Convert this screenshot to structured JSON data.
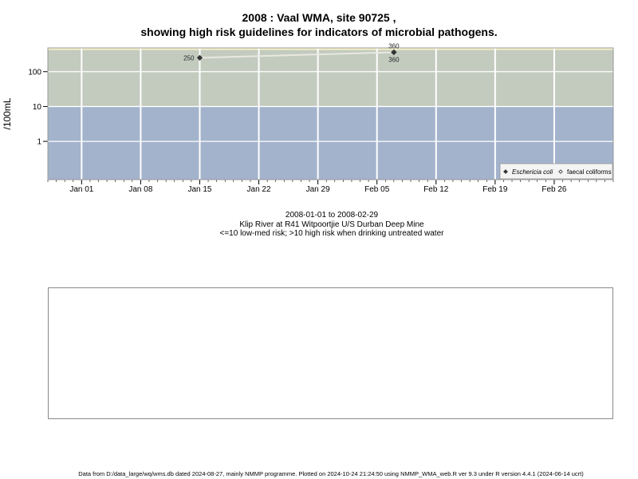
{
  "titles": {
    "line1": "2008 : Vaal WMA, site 90725 ,",
    "line2": "showing high risk guidelines for indicators of microbial pathogens."
  },
  "captions": {
    "date_range": "2008-01-01 to 2008-02-29",
    "site": "Klip River at R41 Witpoortjie U/S Durban Deep Mine",
    "risk": "<=10 low-med risk; >10 high risk when drinking untreated water"
  },
  "footer": "Data from D:/data_large/wq/wms.db dated 2024-08-27, mainly NMMP programme. Plotted on 2024-10-24 21:24:50 using NMMP_WMA_web.R ver 9.3 under R version 4.4.1 (2024-06-14 ucrt)",
  "chart_data": {
    "type": "scatter",
    "ylabel": "/100mL",
    "y_scale": "log",
    "ylim": [
      0.08,
      480
    ],
    "xlim": [
      "2007-12-28",
      "2008-03-04"
    ],
    "x_ticks": [
      {
        "date": "2008-01-01",
        "label": "Jan 01"
      },
      {
        "date": "2008-01-08",
        "label": "Jan 08"
      },
      {
        "date": "2008-01-15",
        "label": "Jan 15"
      },
      {
        "date": "2008-01-22",
        "label": "Jan 22"
      },
      {
        "date": "2008-01-29",
        "label": "Jan 29"
      },
      {
        "date": "2008-02-05",
        "label": "Feb 05"
      },
      {
        "date": "2008-02-12",
        "label": "Feb 12"
      },
      {
        "date": "2008-02-19",
        "label": "Feb 19"
      },
      {
        "date": "2008-02-26",
        "label": "Feb 26"
      }
    ],
    "y_ticks": [
      {
        "value": 1,
        "label": "1"
      },
      {
        "value": 10,
        "label": "10"
      },
      {
        "value": 100,
        "label": "100"
      }
    ],
    "bands": [
      {
        "from": 0.08,
        "to": 10,
        "color": "#a3b3cc"
      },
      {
        "from": 10,
        "to": 420,
        "color": "#c3cbbf"
      },
      {
        "from": 420,
        "to": 480,
        "color": "#f5f0c8"
      }
    ],
    "grid": true,
    "legend_position": "bottom-right",
    "series": [
      {
        "name": "Eschericia coli",
        "marker": "filled-diamond",
        "color": "#333333",
        "points": [
          {
            "x": "2008-01-15",
            "y": 250,
            "label": "250"
          },
          {
            "x": "2008-02-07",
            "y": 360,
            "label": "360"
          }
        ]
      },
      {
        "name": "faecal coliforms",
        "marker": "open-diamond",
        "color": "#333333",
        "points": [
          {
            "x": "2008-02-07",
            "y": 360,
            "label": "360"
          }
        ]
      }
    ],
    "trend_line_color": "#e8e8e0"
  }
}
